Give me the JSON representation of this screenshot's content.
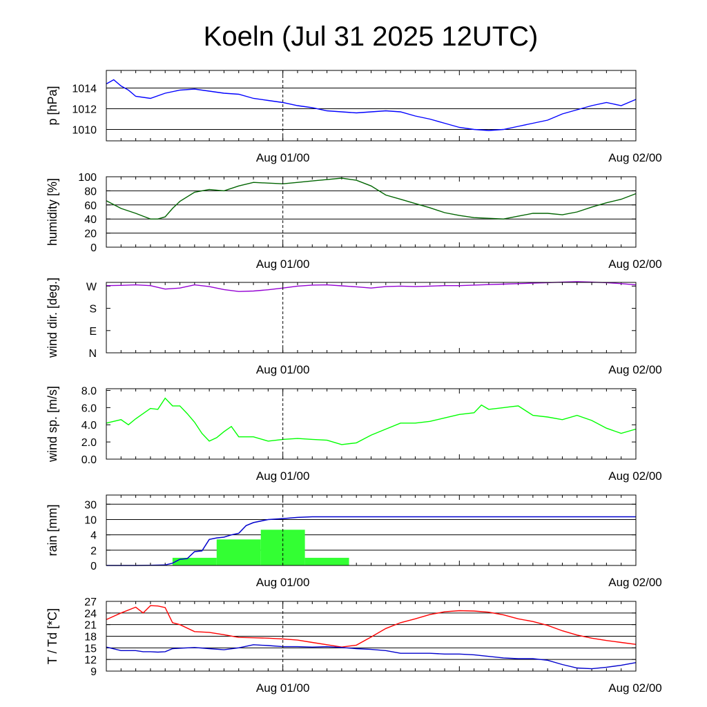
{
  "title": "Koeln (Jul 31 2025 12UTC)",
  "x_tick_labels": [
    "Aug 01/00",
    "Aug 02/00"
  ],
  "colors": {
    "pressure": "#0000ff",
    "humidity": "#006400",
    "wind_dir": "#9400d3",
    "wind_speed": "#00ff00",
    "rain_bars": "#33ff33",
    "rain_cumulative": "#0000cd",
    "temperature": "#ff0000",
    "dewpoint": "#0000cd"
  },
  "chart_data": [
    {
      "type": "line",
      "name": "pressure",
      "ylabel": "p [hPa]",
      "ylim": [
        1008.9,
        1015.7
      ],
      "yticks": [
        1010,
        1012,
        1014
      ],
      "ytick_labels": [
        "1010",
        "1012",
        "1014"
      ],
      "grid": true,
      "x_hours": [
        0,
        0.5,
        1,
        1.5,
        2,
        3,
        4,
        5,
        6,
        7,
        8,
        9,
        10,
        11,
        12,
        13,
        14,
        15,
        16,
        17,
        18,
        19,
        20,
        21,
        22,
        23,
        24,
        25,
        26,
        27,
        28,
        29,
        30,
        31,
        32,
        33,
        34,
        35,
        36
      ],
      "series": [
        {
          "color_key": "pressure",
          "values": [
            1014.4,
            1014.8,
            1014.2,
            1013.8,
            1013.2,
            1013.0,
            1013.5,
            1013.8,
            1013.9,
            1013.7,
            1013.5,
            1013.4,
            1013.0,
            1012.8,
            1012.6,
            1012.3,
            1012.1,
            1011.8,
            1011.7,
            1011.6,
            1011.7,
            1011.8,
            1011.7,
            1011.3,
            1011.0,
            1010.6,
            1010.2,
            1010.0,
            1009.9,
            1010.0,
            1010.3,
            1010.6,
            1010.9,
            1011.5,
            1011.9,
            1012.3,
            1012.6,
            1012.3,
            1012.9
          ]
        }
      ]
    },
    {
      "type": "line",
      "name": "humidity",
      "ylabel": "humidity [%]",
      "ylim": [
        0,
        100
      ],
      "yticks": [
        0,
        20,
        40,
        60,
        80,
        100
      ],
      "ytick_labels": [
        "0",
        "20",
        "40",
        "60",
        "80",
        "100"
      ],
      "grid": true,
      "x_hours": [
        0,
        1,
        2,
        2.5,
        3,
        3.5,
        4,
        4.5,
        5,
        6,
        7,
        8,
        9,
        10,
        11,
        12,
        13,
        14,
        15,
        16,
        17,
        18,
        19,
        20,
        21,
        22,
        23,
        24,
        25,
        26,
        27,
        28,
        29,
        30,
        31,
        32,
        33,
        34,
        35,
        36
      ],
      "series": [
        {
          "color_key": "humidity",
          "values": [
            66,
            55,
            48,
            44,
            40,
            40,
            43,
            55,
            65,
            78,
            82,
            80,
            87,
            92,
            91,
            90,
            92,
            94,
            96,
            98,
            95,
            87,
            74,
            68,
            62,
            56,
            49,
            45,
            42,
            41,
            40,
            44,
            48,
            48,
            46,
            50,
            57,
            63,
            68,
            76
          ]
        }
      ]
    },
    {
      "type": "line",
      "name": "wind_direction",
      "ylabel": "wind dir. [deg.]",
      "ylim": [
        0,
        285
      ],
      "yticks": [
        0,
        90,
        180,
        270
      ],
      "ytick_labels": [
        "N",
        "E",
        "S",
        "W"
      ],
      "grid": false,
      "x_hours": [
        0,
        1,
        2,
        3,
        4,
        5,
        6,
        7,
        8,
        9,
        10,
        11,
        12,
        13,
        14,
        15,
        16,
        17,
        18,
        19,
        20,
        21,
        22,
        23,
        24,
        25,
        26,
        27,
        28,
        29,
        30,
        31,
        32,
        33,
        34,
        35,
        36
      ],
      "series": [
        {
          "color_key": "wind_dir",
          "values": [
            272,
            273,
            275,
            272,
            258,
            262,
            275,
            268,
            256,
            248,
            250,
            255,
            262,
            270,
            274,
            275,
            271,
            267,
            262,
            268,
            270,
            268,
            270,
            272,
            272,
            274,
            276,
            278,
            280,
            282,
            284,
            286,
            288,
            286,
            284,
            280,
            275
          ]
        }
      ]
    },
    {
      "type": "line",
      "name": "wind_speed",
      "ylabel": "wind sp. [m/s]",
      "ylim": [
        0,
        8.2
      ],
      "yticks": [
        0,
        2,
        4,
        6,
        8
      ],
      "ytick_labels": [
        "0.0",
        "2.0",
        "4.0",
        "6.0",
        "8.0"
      ],
      "grid": false,
      "x_hours": [
        0,
        1,
        1.5,
        2,
        3,
        3.5,
        4,
        4.5,
        5,
        5.5,
        6,
        6.5,
        7,
        7.5,
        8,
        8.5,
        9,
        10,
        11,
        12,
        13,
        14,
        15,
        16,
        17,
        18,
        19,
        20,
        21,
        22,
        23,
        24,
        25,
        25.5,
        26,
        27,
        27.5,
        28,
        29,
        30,
        31,
        32,
        33,
        34,
        35,
        36
      ],
      "series": [
        {
          "color_key": "wind_speed",
          "values": [
            4.2,
            4.6,
            4.0,
            4.7,
            5.9,
            5.8,
            7.1,
            6.2,
            6.2,
            5.3,
            4.3,
            3.0,
            2.1,
            2.5,
            3.2,
            3.8,
            2.6,
            2.6,
            2.1,
            2.3,
            2.4,
            2.3,
            2.2,
            1.7,
            1.9,
            2.8,
            3.5,
            4.2,
            4.2,
            4.4,
            4.8,
            5.2,
            5.4,
            6.3,
            5.8,
            6.0,
            6.1,
            6.2,
            5.1,
            4.9,
            4.6,
            5.1,
            4.5,
            3.6,
            3.0,
            3.5
          ]
        }
      ]
    },
    {
      "type": "bar",
      "name": "rain",
      "ylabel": "rain [mm]",
      "ylim_display": [
        0,
        4.6
      ],
      "yticks_display": [
        0,
        1,
        2,
        3,
        4
      ],
      "ytick_labels": [
        "0",
        "2",
        "4",
        "10",
        "30"
      ],
      "grid": true,
      "bars": [
        {
          "x_start": 4.5,
          "x_end": 7.5,
          "value_mm": 1.0
        },
        {
          "x_start": 7.5,
          "x_end": 10.5,
          "value_mm": 3.4
        },
        {
          "x_start": 10.5,
          "x_end": 13.5,
          "value_mm": 6.0
        },
        {
          "x_start": 13.5,
          "x_end": 16.5,
          "value_mm": 1.0
        }
      ],
      "cumulative": {
        "color_key": "rain_cumulative",
        "x_hours": [
          0,
          2,
          3,
          4,
          4.5,
          5,
          5.5,
          6,
          6.5,
          7,
          7.5,
          8,
          8.5,
          9,
          9.5,
          10,
          11,
          12,
          13,
          14,
          36
        ],
        "values_display": [
          0,
          0,
          0.01,
          0.03,
          0.15,
          0.4,
          0.45,
          0.9,
          0.95,
          1.7,
          1.8,
          1.85,
          2.0,
          2.1,
          2.6,
          2.8,
          3.0,
          3.06,
          3.14,
          3.18,
          3.18
        ]
      }
    },
    {
      "type": "line",
      "name": "temperature_dewpoint",
      "ylabel": "T / Td [*C]",
      "ylim": [
        9,
        27
      ],
      "yticks": [
        9,
        12,
        15,
        18,
        21,
        24,
        27
      ],
      "ytick_labels": [
        "9",
        "12",
        "15",
        "18",
        "21",
        "24",
        "27"
      ],
      "grid": true,
      "x_hours": [
        0,
        1,
        2,
        2.5,
        3,
        3.5,
        4,
        4.5,
        5,
        6,
        7,
        8,
        9,
        10,
        11,
        12,
        13,
        14,
        15,
        16,
        17,
        18,
        19,
        20,
        21,
        22,
        23,
        24,
        25,
        26,
        27,
        28,
        29,
        30,
        31,
        32,
        33,
        34,
        35,
        36
      ],
      "series": [
        {
          "color_key": "temperature",
          "values": [
            22.3,
            24.0,
            25.5,
            24.0,
            25.9,
            25.8,
            25.4,
            21.5,
            21.0,
            19.2,
            19.0,
            18.4,
            17.7,
            17.6,
            17.5,
            17.3,
            17.0,
            16.4,
            15.8,
            15.2,
            15.7,
            17.8,
            20.0,
            21.5,
            22.5,
            23.6,
            24.3,
            24.6,
            24.5,
            24.2,
            23.5,
            22.5,
            21.8,
            20.8,
            19.4,
            18.3,
            17.5,
            16.9,
            16.4,
            15.9
          ]
        },
        {
          "color_key": "dewpoint",
          "values": [
            15.2,
            14.3,
            14.3,
            14.0,
            14.0,
            13.9,
            14.0,
            14.8,
            14.9,
            15.1,
            14.8,
            14.5,
            15.0,
            15.8,
            15.6,
            15.3,
            15.3,
            15.2,
            15.3,
            15.1,
            14.8,
            14.6,
            14.3,
            13.6,
            13.6,
            13.6,
            13.4,
            13.4,
            13.2,
            12.8,
            12.4,
            12.2,
            12.2,
            11.8,
            10.7,
            9.8,
            9.6,
            10.0,
            10.5,
            11.2
          ]
        }
      ]
    }
  ]
}
